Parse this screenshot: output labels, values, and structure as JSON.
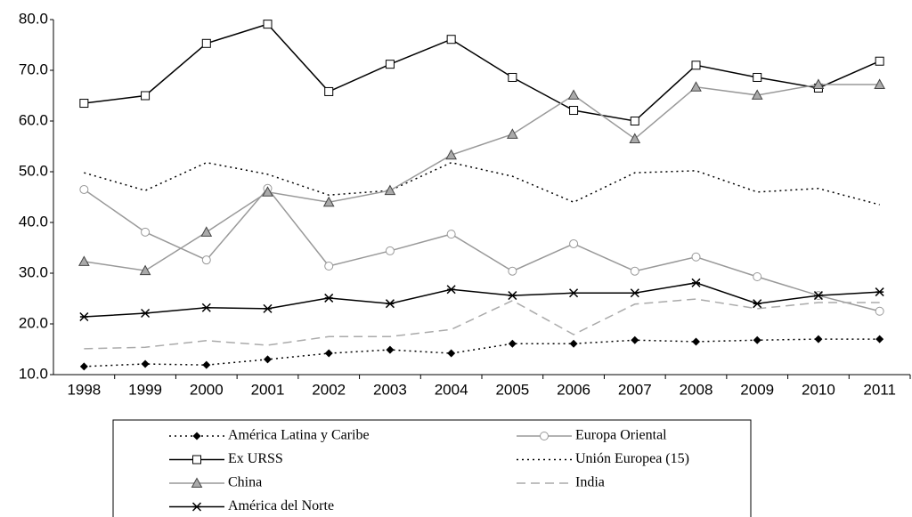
{
  "chart_data": {
    "type": "line",
    "categories": [
      "1998",
      "1999",
      "2000",
      "2001",
      "2002",
      "2003",
      "2004",
      "2005",
      "2006",
      "2007",
      "2008",
      "2009",
      "2010",
      "2011"
    ],
    "ylim": [
      10,
      80
    ],
    "yticks": [
      {
        "value": 10,
        "label": "10.0"
      },
      {
        "value": 20,
        "label": "20.0"
      },
      {
        "value": 30,
        "label": "30.0"
      },
      {
        "value": 40,
        "label": "40.0"
      },
      {
        "value": 50,
        "label": "50.0"
      },
      {
        "value": 60,
        "label": "60.0"
      },
      {
        "value": 70,
        "label": "70.0"
      },
      {
        "value": 80,
        "label": "80.0"
      }
    ],
    "series": [
      {
        "name": "América Latina y Caribe",
        "color": "#000000",
        "dash": "dotted",
        "marker": "diamond",
        "values": [
          11.6,
          12.1,
          11.9,
          13,
          14.2,
          14.9,
          14.2,
          16.1,
          16.1,
          16.8,
          16.5,
          16.8,
          17,
          17
        ]
      },
      {
        "name": "Europa Oriental",
        "color": "#999999",
        "dash": "solid",
        "marker": "circle",
        "values": [
          46.5,
          38.1,
          32.6,
          46.7,
          31.4,
          34.4,
          37.7,
          30.4,
          35.8,
          30.4,
          33.2,
          29.3,
          25.6,
          22.5
        ]
      },
      {
        "name": "Ex URSS",
        "color": "#000000",
        "dash": "solid",
        "marker": "square",
        "values": [
          63.5,
          65,
          75.3,
          79.1,
          65.8,
          71.2,
          76.1,
          68.6,
          62.1,
          60,
          71,
          68.6,
          66.5,
          71.8
        ]
      },
      {
        "name": "Unión Europea (15)",
        "color": "#000000",
        "dash": "dotted",
        "marker": "none",
        "values": [
          49.8,
          46.3,
          51.8,
          49.5,
          45.4,
          46.3,
          51.8,
          49.1,
          44,
          49.8,
          50.2,
          46,
          46.7,
          43.5
        ]
      },
      {
        "name": "China",
        "color": "#999999",
        "dash": "solid",
        "marker": "triangle",
        "values": [
          32.3,
          30.5,
          38.1,
          46,
          44,
          46.3,
          53.3,
          57.4,
          65.1,
          56.5,
          66.7,
          65.1,
          67.2,
          67.2
        ]
      },
      {
        "name": "India",
        "color": "#aaaaaa",
        "dash": "dashed",
        "marker": "none",
        "values": [
          15.1,
          15.4,
          16.7,
          15.8,
          17.5,
          17.5,
          18.9,
          24.6,
          17.9,
          23.9,
          24.9,
          23,
          24.2,
          24.2
        ]
      },
      {
        "name": "América del Norte",
        "color": "#000000",
        "dash": "solid",
        "marker": "star",
        "values": [
          21.4,
          22.1,
          23.2,
          23,
          25.1,
          24,
          26.8,
          25.6,
          26.1,
          26.1,
          28.1,
          24,
          25.6,
          26.3
        ]
      }
    ]
  }
}
